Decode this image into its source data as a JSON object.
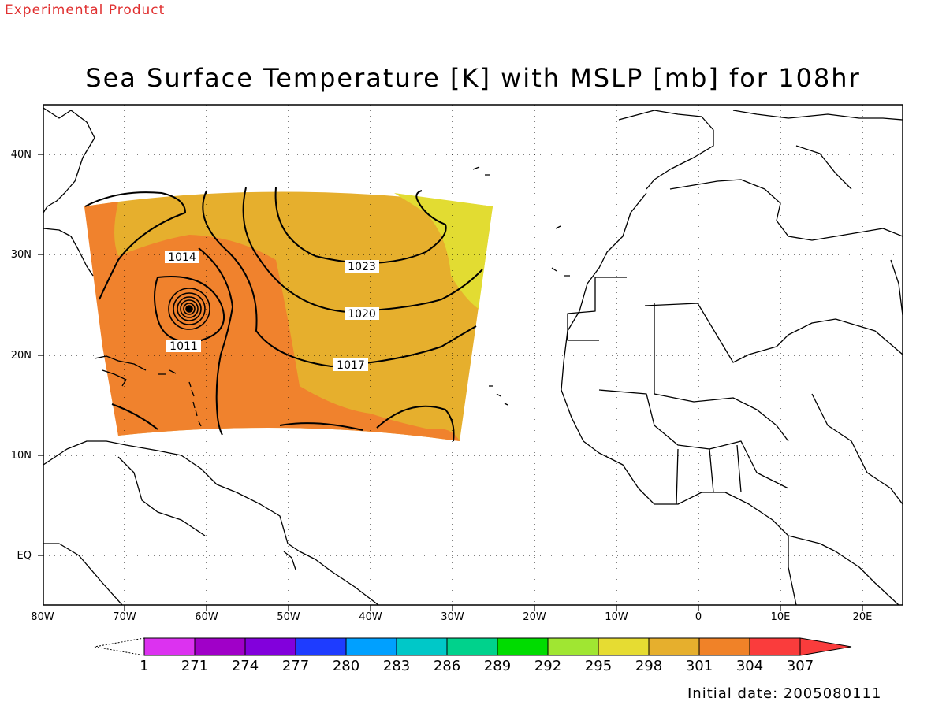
{
  "header": {
    "product_tag": "Experimental Product",
    "title": "Sea Surface Temperature [K] with MSLP [mb] for 108hr"
  },
  "map": {
    "lat_labels": [
      "40N",
      "30N",
      "20N",
      "10N",
      "EQ"
    ],
    "lon_labels": [
      "80W",
      "70W",
      "60W",
      "50W",
      "40W",
      "30W",
      "20W",
      "10W",
      "0",
      "10E",
      "20E"
    ],
    "sst_fill_colors": {
      "yellow": "#e2dc32",
      "gold": "#e6af2d",
      "orange": "#f0822d"
    },
    "isobar_labels": [
      "1014",
      "1011",
      "1023",
      "1020",
      "1017"
    ]
  },
  "colorbar": {
    "colors": [
      "#dddddd",
      "#dc32f0",
      "#a000c8",
      "#8200dc",
      "#1e3cff",
      "#00a0ff",
      "#00c8c8",
      "#00d28c",
      "#00dc00",
      "#a0e632",
      "#e6dc32",
      "#e6af2d",
      "#f08228",
      "#fa3c3c",
      "#f00082"
    ],
    "labels": [
      "1",
      "271",
      "274",
      "277",
      "280",
      "283",
      "286",
      "289",
      "292",
      "295",
      "298",
      "301",
      "304",
      "307"
    ]
  },
  "footer": {
    "initial_date": "Initial date: 2005080111"
  }
}
